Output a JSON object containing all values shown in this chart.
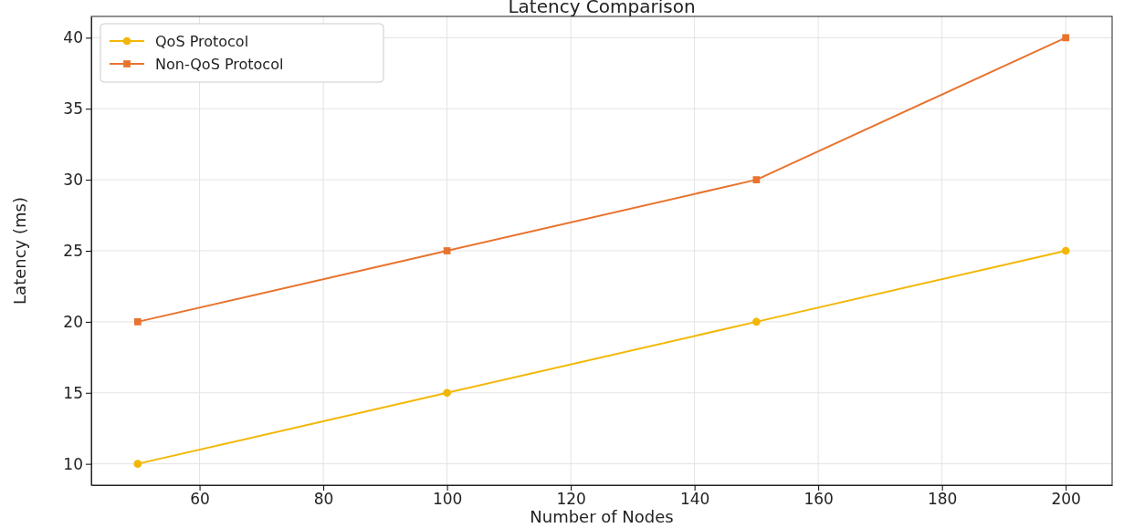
{
  "chart_data": {
    "type": "line",
    "title": "Latency Comparison",
    "xlabel": "Number of Nodes",
    "ylabel": "Latency (ms)",
    "x": [
      50,
      100,
      150,
      200
    ],
    "series": [
      {
        "name": "QoS Protocol",
        "color": "#f2b705",
        "values": [
          10,
          15,
          20,
          25
        ],
        "marker": "circle"
      },
      {
        "name": "Non-QoS Protocol",
        "color": "#e8732e",
        "values": [
          20,
          25,
          30,
          40
        ],
        "marker": "square"
      }
    ],
    "xlim": [
      42.5,
      207.5
    ],
    "xticks": [
      60,
      80,
      100,
      120,
      140,
      160,
      180,
      200
    ],
    "ylim": [
      8.5,
      41.5
    ],
    "yticks": [
      10,
      15,
      20,
      25,
      30,
      35,
      40
    ],
    "grid": true,
    "legend": "top left",
    "line_style": "solid"
  }
}
